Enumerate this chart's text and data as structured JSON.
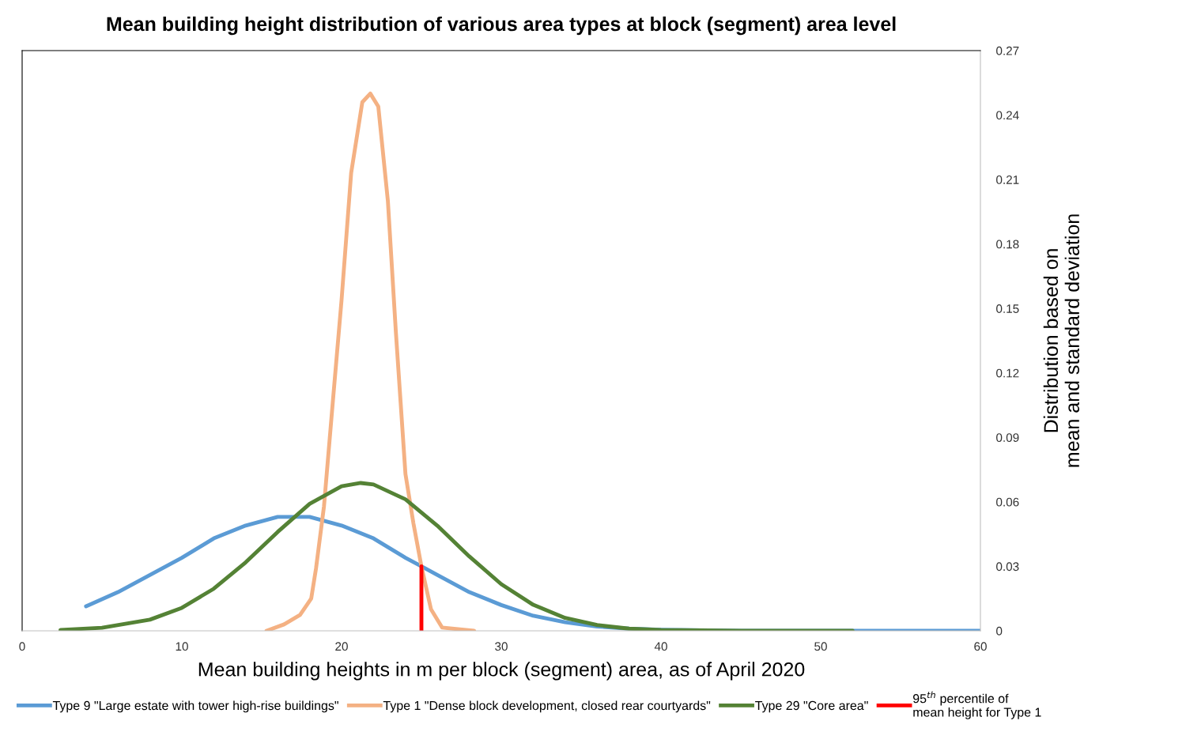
{
  "chart_data": {
    "type": "line",
    "title": "Mean building height distribution of various area types at block (segment) area level",
    "xlabel": "Mean building heights in m per block (segment) area, as of April 2020",
    "ylabel": "Distribution based on\nmean and standard deviation",
    "xlim": [
      0,
      60
    ],
    "xticks": [
      0,
      10,
      20,
      30,
      40,
      50,
      60
    ],
    "ylim": [
      0,
      0.27
    ],
    "yticks": [
      0,
      0.03,
      0.06,
      0.09,
      0.12,
      0.15,
      0.18,
      0.21,
      0.24,
      0.27
    ],
    "grid": false,
    "legend": "bottom",
    "marker": "none",
    "line_style": "solid",
    "series": [
      {
        "name": "Type 9 \"Large estate with tower high-rise buildings\"",
        "color": "#5b9bd5",
        "x": [
          4,
          6,
          8,
          10,
          12,
          14,
          16,
          17,
          18,
          20,
          22,
          24,
          25,
          26,
          28,
          30,
          32,
          34,
          36,
          38,
          40,
          45,
          50,
          55,
          60
        ],
        "values": [
          0.0114,
          0.018,
          0.026,
          0.034,
          0.043,
          0.049,
          0.053,
          0.053,
          0.053,
          0.049,
          0.043,
          0.034,
          0.03,
          0.026,
          0.018,
          0.012,
          0.007,
          0.004,
          0.002,
          0.001,
          0.0005,
          0,
          0,
          0,
          0
        ]
      },
      {
        "name": "Type 1 \"Dense block development, closed rear courtyards\"",
        "color": "#f4b183",
        "x": [
          15.3,
          16.4,
          17.4,
          18.1,
          18.4,
          18.9,
          19.4,
          20.0,
          20.6,
          21.3,
          21.8,
          22.3,
          22.9,
          23.4,
          24.0,
          24.5,
          25.0,
          25.6,
          26.3,
          28.3
        ],
        "values": [
          0,
          0.003,
          0.0074,
          0.015,
          0.029,
          0.058,
          0.102,
          0.154,
          0.213,
          0.246,
          0.25,
          0.244,
          0.2,
          0.139,
          0.073,
          0.05,
          0.03,
          0.01,
          0.0015,
          0
        ]
      },
      {
        "name": "Type 29 \"Core area\"",
        "color": "#548235",
        "x": [
          2.4,
          5,
          8,
          10,
          12,
          14,
          16,
          18,
          20,
          21.2,
          22,
          24,
          26,
          28,
          30,
          32,
          34,
          36,
          38,
          40,
          45,
          52
        ],
        "values": [
          0.0004,
          0.0014,
          0.0052,
          0.0107,
          0.0196,
          0.0319,
          0.046,
          0.0591,
          0.0673,
          0.0688,
          0.0681,
          0.0612,
          0.0489,
          0.0346,
          0.0217,
          0.0121,
          0.006,
          0.0027,
          0.001,
          0.0004,
          0,
          0
        ]
      },
      {
        "name": "95$^{th}$ percentile of\nmean height for Type 1",
        "color": "#ff0000",
        "x": [
          25,
          25
        ],
        "values": [
          0,
          0.03
        ]
      }
    ]
  }
}
